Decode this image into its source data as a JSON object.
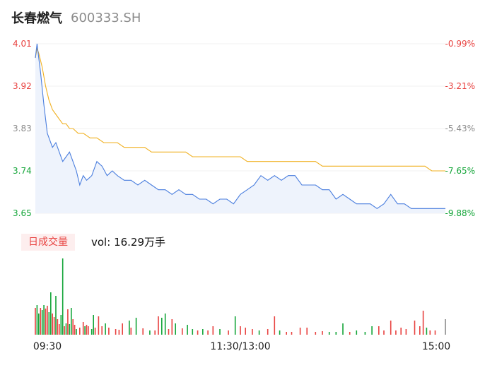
{
  "header": {
    "name": "长春燃气",
    "code": "600333.SH"
  },
  "volume": {
    "badge_label": "日成交量",
    "prefix": "vol:",
    "value": "16.29万手"
  },
  "colors": {
    "up": "#e8413f",
    "down": "#13a538",
    "flat": "#8c8c8c",
    "price_line": "#4a7ede",
    "avg_line": "#f0b020",
    "area_fill": "#eef3fc"
  },
  "chart_data": {
    "type": "line",
    "y_ticks": [
      {
        "price": "4.01",
        "pct": "-0.99%",
        "dir": "up"
      },
      {
        "price": "3.92",
        "pct": "-3.21%",
        "dir": "up"
      },
      {
        "price": "3.83",
        "pct": "-5.43%",
        "dir": "flat"
      },
      {
        "price": "3.74",
        "pct": "-7.65%",
        "dir": "down"
      },
      {
        "price": "3.65",
        "pct": "-9.88%",
        "dir": "down"
      }
    ],
    "ylim": [
      3.65,
      4.01
    ],
    "x_labels": [
      "09:30",
      "11:30/13:00",
      "15:00"
    ],
    "series": [
      {
        "name": "price",
        "x": [
          0,
          1,
          2,
          3,
          5,
          7,
          10,
          12,
          14,
          16,
          18,
          20,
          22,
          24,
          26,
          28,
          30,
          33,
          36,
          39,
          42,
          45,
          48,
          52,
          56,
          60,
          64,
          68,
          72,
          76,
          80,
          84,
          88,
          92,
          96,
          100,
          104,
          108,
          112,
          116,
          120,
          124,
          128,
          132,
          136,
          140,
          144,
          148,
          152,
          156,
          160,
          164,
          168,
          172,
          176,
          180,
          184,
          188,
          192,
          196,
          200,
          204,
          208,
          212,
          216,
          220,
          224,
          228,
          232,
          236,
          240
        ],
        "values": [
          3.98,
          4.01,
          3.98,
          3.95,
          3.88,
          3.82,
          3.79,
          3.8,
          3.78,
          3.76,
          3.77,
          3.78,
          3.76,
          3.74,
          3.71,
          3.73,
          3.72,
          3.73,
          3.76,
          3.75,
          3.73,
          3.74,
          3.73,
          3.72,
          3.72,
          3.71,
          3.72,
          3.71,
          3.7,
          3.7,
          3.69,
          3.7,
          3.69,
          3.69,
          3.68,
          3.68,
          3.67,
          3.68,
          3.68,
          3.67,
          3.69,
          3.7,
          3.71,
          3.73,
          3.72,
          3.73,
          3.72,
          3.73,
          3.73,
          3.71,
          3.71,
          3.71,
          3.7,
          3.7,
          3.68,
          3.69,
          3.68,
          3.67,
          3.67,
          3.67,
          3.66,
          3.67,
          3.69,
          3.67,
          3.67,
          3.66,
          3.66,
          3.66,
          3.66,
          3.66,
          3.66
        ]
      },
      {
        "name": "avg",
        "x": [
          0,
          1,
          2,
          4,
          6,
          8,
          10,
          12,
          14,
          16,
          18,
          20,
          22,
          25,
          28,
          32,
          36,
          40,
          44,
          48,
          52,
          56,
          60,
          64,
          68,
          72,
          76,
          80,
          84,
          88,
          92,
          96,
          100,
          104,
          108,
          112,
          116,
          120,
          124,
          128,
          132,
          136,
          140,
          144,
          148,
          152,
          156,
          160,
          164,
          168,
          172,
          176,
          180,
          184,
          188,
          192,
          196,
          200,
          204,
          208,
          212,
          216,
          220,
          224,
          228,
          232,
          236,
          240
        ],
        "values": [
          3.98,
          4.0,
          3.99,
          3.96,
          3.92,
          3.89,
          3.87,
          3.86,
          3.85,
          3.84,
          3.84,
          3.83,
          3.83,
          3.82,
          3.82,
          3.81,
          3.81,
          3.8,
          3.8,
          3.8,
          3.79,
          3.79,
          3.79,
          3.79,
          3.78,
          3.78,
          3.78,
          3.78,
          3.78,
          3.78,
          3.77,
          3.77,
          3.77,
          3.77,
          3.77,
          3.77,
          3.77,
          3.77,
          3.76,
          3.76,
          3.76,
          3.76,
          3.76,
          3.76,
          3.76,
          3.76,
          3.76,
          3.76,
          3.76,
          3.75,
          3.75,
          3.75,
          3.75,
          3.75,
          3.75,
          3.75,
          3.75,
          3.75,
          3.75,
          3.75,
          3.75,
          3.75,
          3.75,
          3.75,
          3.75,
          3.74,
          3.74,
          3.74
        ]
      }
    ],
    "volume_bars": [
      {
        "x": 0,
        "v": 38,
        "dir": "up"
      },
      {
        "x": 1,
        "v": 42,
        "dir": "down"
      },
      {
        "x": 2,
        "v": 30,
        "dir": "down"
      },
      {
        "x": 3,
        "v": 38,
        "dir": "up"
      },
      {
        "x": 4,
        "v": 35,
        "dir": "down"
      },
      {
        "x": 5,
        "v": 42,
        "dir": "down"
      },
      {
        "x": 6,
        "v": 37,
        "dir": "up"
      },
      {
        "x": 7,
        "v": 41,
        "dir": "up"
      },
      {
        "x": 8,
        "v": 32,
        "dir": "down"
      },
      {
        "x": 9,
        "v": 60,
        "dir": "down"
      },
      {
        "x": 10,
        "v": 30,
        "dir": "up"
      },
      {
        "x": 11,
        "v": 25,
        "dir": "up"
      },
      {
        "x": 12,
        "v": 55,
        "dir": "down"
      },
      {
        "x": 13,
        "v": 22,
        "dir": "up"
      },
      {
        "x": 14,
        "v": 15,
        "dir": "up"
      },
      {
        "x": 15,
        "v": 28,
        "dir": "down"
      },
      {
        "x": 16,
        "v": 108,
        "dir": "down"
      },
      {
        "x": 17,
        "v": 12,
        "dir": "up"
      },
      {
        "x": 18,
        "v": 16,
        "dir": "down"
      },
      {
        "x": 19,
        "v": 36,
        "dir": "up"
      },
      {
        "x": 20,
        "v": 15,
        "dir": "down"
      },
      {
        "x": 21,
        "v": 38,
        "dir": "down"
      },
      {
        "x": 22,
        "v": 22,
        "dir": "up"
      },
      {
        "x": 23,
        "v": 14,
        "dir": "up"
      },
      {
        "x": 24,
        "v": 8,
        "dir": "down"
      },
      {
        "x": 26,
        "v": 10,
        "dir": "up"
      },
      {
        "x": 28,
        "v": 18,
        "dir": "up"
      },
      {
        "x": 29,
        "v": 12,
        "dir": "down"
      },
      {
        "x": 30,
        "v": 14,
        "dir": "up"
      },
      {
        "x": 31,
        "v": 12,
        "dir": "up"
      },
      {
        "x": 33,
        "v": 8,
        "dir": "down"
      },
      {
        "x": 34,
        "v": 28,
        "dir": "down"
      },
      {
        "x": 35,
        "v": 10,
        "dir": "up"
      },
      {
        "x": 37,
        "v": 26,
        "dir": "up"
      },
      {
        "x": 39,
        "v": 12,
        "dir": "up"
      },
      {
        "x": 41,
        "v": 16,
        "dir": "down"
      },
      {
        "x": 43,
        "v": 10,
        "dir": "up"
      },
      {
        "x": 47,
        "v": 8,
        "dir": "up"
      },
      {
        "x": 49,
        "v": 7,
        "dir": "up"
      },
      {
        "x": 51,
        "v": 16,
        "dir": "up"
      },
      {
        "x": 55,
        "v": 20,
        "dir": "down"
      },
      {
        "x": 56,
        "v": 10,
        "dir": "up"
      },
      {
        "x": 59,
        "v": 24,
        "dir": "down"
      },
      {
        "x": 63,
        "v": 9,
        "dir": "up"
      },
      {
        "x": 67,
        "v": 6,
        "dir": "down"
      },
      {
        "x": 70,
        "v": 6,
        "dir": "up"
      },
      {
        "x": 72,
        "v": 26,
        "dir": "up"
      },
      {
        "x": 74,
        "v": 24,
        "dir": "down"
      },
      {
        "x": 76,
        "v": 30,
        "dir": "down"
      },
      {
        "x": 78,
        "v": 8,
        "dir": "up"
      },
      {
        "x": 80,
        "v": 22,
        "dir": "up"
      },
      {
        "x": 82,
        "v": 16,
        "dir": "down"
      },
      {
        "x": 86,
        "v": 9,
        "dir": "up"
      },
      {
        "x": 89,
        "v": 14,
        "dir": "down"
      },
      {
        "x": 92,
        "v": 8,
        "dir": "down"
      },
      {
        "x": 95,
        "v": 6,
        "dir": "up"
      },
      {
        "x": 98,
        "v": 8,
        "dir": "down"
      },
      {
        "x": 101,
        "v": 6,
        "dir": "up"
      },
      {
        "x": 104,
        "v": 12,
        "dir": "up"
      },
      {
        "x": 108,
        "v": 8,
        "dir": "down"
      },
      {
        "x": 113,
        "v": 6,
        "dir": "up"
      },
      {
        "x": 117,
        "v": 26,
        "dir": "down"
      },
      {
        "x": 120,
        "v": 12,
        "dir": "up"
      },
      {
        "x": 123,
        "v": 10,
        "dir": "up"
      },
      {
        "x": 127,
        "v": 8,
        "dir": "up"
      },
      {
        "x": 131,
        "v": 6,
        "dir": "down"
      },
      {
        "x": 136,
        "v": 8,
        "dir": "up"
      },
      {
        "x": 140,
        "v": 26,
        "dir": "up"
      },
      {
        "x": 143,
        "v": 6,
        "dir": "down"
      },
      {
        "x": 147,
        "v": 4,
        "dir": "up"
      },
      {
        "x": 150,
        "v": 4,
        "dir": "up"
      },
      {
        "x": 155,
        "v": 10,
        "dir": "up"
      },
      {
        "x": 159,
        "v": 10,
        "dir": "up"
      },
      {
        "x": 164,
        "v": 4,
        "dir": "up"
      },
      {
        "x": 168,
        "v": 5,
        "dir": "up"
      },
      {
        "x": 172,
        "v": 4,
        "dir": "down"
      },
      {
        "x": 176,
        "v": 4,
        "dir": "down"
      },
      {
        "x": 180,
        "v": 16,
        "dir": "down"
      },
      {
        "x": 184,
        "v": 4,
        "dir": "up"
      },
      {
        "x": 188,
        "v": 6,
        "dir": "down"
      },
      {
        "x": 193,
        "v": 4,
        "dir": "down"
      },
      {
        "x": 197,
        "v": 12,
        "dir": "down"
      },
      {
        "x": 201,
        "v": 12,
        "dir": "up"
      },
      {
        "x": 204,
        "v": 6,
        "dir": "up"
      },
      {
        "x": 208,
        "v": 20,
        "dir": "up"
      },
      {
        "x": 211,
        "v": 6,
        "dir": "up"
      },
      {
        "x": 214,
        "v": 10,
        "dir": "up"
      },
      {
        "x": 217,
        "v": 8,
        "dir": "up"
      },
      {
        "x": 222,
        "v": 20,
        "dir": "up"
      },
      {
        "x": 225,
        "v": 12,
        "dir": "up"
      },
      {
        "x": 227,
        "v": 34,
        "dir": "up"
      },
      {
        "x": 229,
        "v": 10,
        "dir": "down"
      },
      {
        "x": 231,
        "v": 6,
        "dir": "up"
      },
      {
        "x": 234,
        "v": 6,
        "dir": "up"
      },
      {
        "x": 240,
        "v": 22,
        "dir": "flat"
      }
    ]
  }
}
